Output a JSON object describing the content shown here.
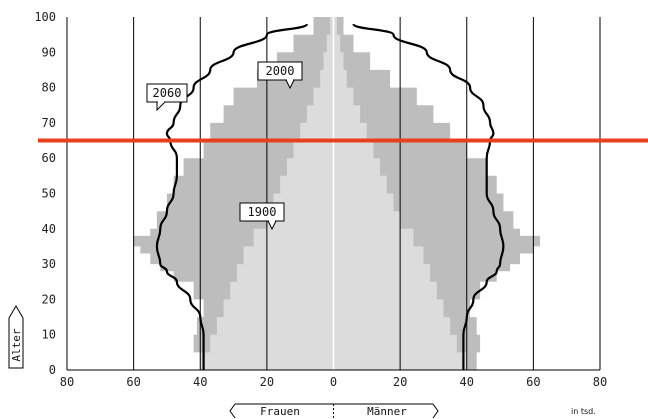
{
  "chart_data": {
    "type": "population-pyramid",
    "y_axis_title": "Alter",
    "unit_label": "in tsd.",
    "left_label": "Frauen",
    "right_label": "Männer",
    "x_ticks": [
      80,
      60,
      40,
      20,
      0,
      20,
      40,
      60,
      80
    ],
    "y_ticks": [
      0,
      10,
      20,
      30,
      40,
      50,
      60,
      70,
      80,
      90,
      100
    ],
    "xlim": [
      -80,
      80
    ],
    "ylim": [
      0,
      100
    ],
    "reference_line": {
      "age": 65,
      "color": "#e8401c"
    },
    "series": [
      {
        "name": "2000",
        "style": "area",
        "color": "#bdbdbd",
        "ages": [
          0,
          5,
          10,
          15,
          20,
          25,
          28,
          30,
          33,
          35,
          38,
          40,
          45,
          50,
          55,
          60,
          65,
          70,
          75,
          80,
          85,
          90,
          95,
          100
        ],
        "women": [
          40,
          42,
          41,
          39,
          42,
          48,
          52,
          55,
          58,
          60,
          55,
          53,
          50,
          48,
          45,
          39,
          37,
          33,
          30,
          23,
          17,
          12,
          6,
          1
        ],
        "men": [
          43,
          44,
          43,
          41,
          44,
          49,
          53,
          56,
          60,
          62,
          56,
          54,
          51,
          49,
          46,
          40,
          35,
          30,
          25,
          17,
          11,
          6,
          3,
          0
        ]
      },
      {
        "name": "1900",
        "style": "area",
        "color": "#dcdcdc",
        "ages": [
          0,
          5,
          10,
          15,
          20,
          25,
          30,
          35,
          40,
          45,
          50,
          55,
          60,
          65,
          70,
          75,
          80,
          85,
          90,
          95,
          100
        ],
        "women": [
          40,
          37,
          35,
          33,
          31,
          29,
          27,
          24,
          20,
          18,
          16,
          14,
          12,
          10,
          8,
          6,
          4,
          3,
          2,
          1,
          0
        ],
        "men": [
          40,
          37,
          35,
          33,
          31,
          29,
          27,
          24,
          20,
          18,
          16,
          14,
          12,
          10,
          8,
          6,
          4,
          3,
          2,
          1,
          0
        ]
      },
      {
        "name": "2060",
        "style": "line",
        "color": "#000000",
        "ages": [
          0,
          5,
          10,
          15,
          20,
          25,
          28,
          30,
          35,
          40,
          45,
          50,
          55,
          60,
          65,
          67,
          70,
          75,
          80,
          85,
          90,
          95,
          98
        ],
        "women": [
          39,
          39,
          39,
          40,
          43,
          47,
          50,
          52,
          53,
          52,
          50,
          48,
          47,
          47,
          49,
          50,
          48,
          46,
          42,
          37,
          30,
          20,
          8
        ],
        "men": [
          39,
          39,
          39,
          40,
          42,
          46,
          49,
          50,
          51,
          50,
          48,
          46,
          46,
          46,
          47,
          48,
          47,
          45,
          41,
          35,
          28,
          18,
          6
        ]
      }
    ],
    "callouts": [
      {
        "text": "2060",
        "age": 82
      },
      {
        "text": "2000",
        "age": 87
      },
      {
        "text": "1900",
        "age": 44
      }
    ]
  }
}
